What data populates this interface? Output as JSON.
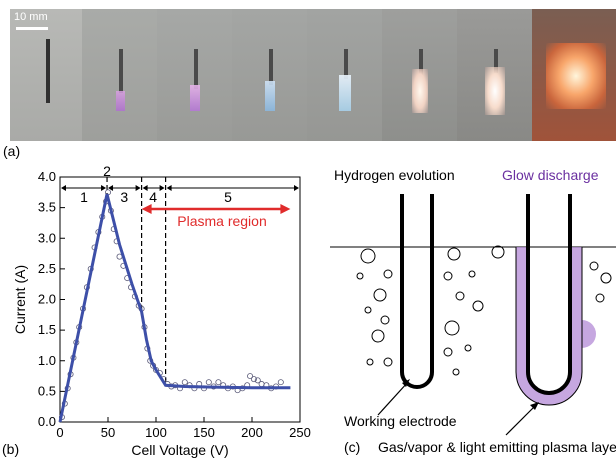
{
  "panel_a": {
    "label": "(a)",
    "scale_bar_text": "10 mm",
    "frame_count": 9
  },
  "panel_b": {
    "label": "(b)",
    "chart_data": {
      "type": "line",
      "xlabel": "Cell Voltage (V)",
      "ylabel": "Current (A)",
      "xlim": [
        0,
        250
      ],
      "ylim": [
        0,
        4.0
      ],
      "x_ticks": [
        0,
        50,
        100,
        150,
        200,
        250
      ],
      "y_ticks": [
        0.0,
        0.5,
        1.0,
        1.5,
        2.0,
        2.5,
        3.0,
        3.5,
        4.0
      ],
      "y_tick_labels": [
        "0.0",
        "0.5",
        "1.0",
        "1.5",
        "2.0",
        "2.5",
        "3.0",
        "3.5",
        "4.0"
      ],
      "grid": false,
      "series": [
        {
          "kind": "fit-line",
          "color": "#3d4fa8",
          "x": [
            0,
            49,
            62,
            75,
            85,
            90,
            95,
            100,
            110,
            130,
            160,
            200,
            240
          ],
          "y": [
            0.0,
            3.72,
            2.9,
            2.25,
            1.8,
            1.35,
            1.0,
            0.85,
            0.6,
            0.58,
            0.57,
            0.56,
            0.56
          ]
        },
        {
          "kind": "measured-points",
          "color": "#5a5a78",
          "x": [
            2,
            5,
            8,
            11,
            14,
            17,
            20,
            24,
            28,
            32,
            36,
            40,
            44,
            48,
            50,
            53,
            56,
            59,
            62,
            66,
            70,
            74,
            78,
            82,
            85,
            88,
            91,
            94,
            97,
            100,
            104,
            108,
            112,
            116,
            120,
            125,
            130,
            135,
            140,
            145,
            150,
            155,
            160,
            165,
            170,
            175,
            180,
            185,
            190,
            195,
            198,
            202,
            206,
            210,
            215,
            220,
            225,
            230
          ],
          "y": [
            0.08,
            0.3,
            0.55,
            0.78,
            1.05,
            1.3,
            1.55,
            1.85,
            2.2,
            2.5,
            2.85,
            3.1,
            3.35,
            3.6,
            3.75,
            3.45,
            3.15,
            2.95,
            2.7,
            2.55,
            2.35,
            2.2,
            2.05,
            1.9,
            1.85,
            1.55,
            1.2,
            1.0,
            0.92,
            0.85,
            0.8,
            0.7,
            0.62,
            0.58,
            0.6,
            0.55,
            0.65,
            0.6,
            0.55,
            0.62,
            0.55,
            0.65,
            0.58,
            0.65,
            0.6,
            0.55,
            0.58,
            0.52,
            0.55,
            0.6,
            0.75,
            0.7,
            0.68,
            0.62,
            0.6,
            0.55,
            0.58,
            0.65
          ]
        }
      ],
      "region_boundaries": [
        49,
        85,
        110
      ],
      "regions": [
        {
          "label": "1",
          "x": 25
        },
        {
          "label": "2",
          "x": 49
        },
        {
          "label": "3",
          "x": 67
        },
        {
          "label": "4",
          "x": 97
        },
        {
          "label": "5",
          "x": 175
        }
      ],
      "plasma_region": {
        "label": "Plasma region",
        "x_start": 85,
        "x_end": 240,
        "color": "#e02b2b"
      }
    }
  },
  "panel_c": {
    "label": "(c)",
    "heading_left": "Hydrogen evolution",
    "heading_right": "Glow discharge",
    "heading_right_color": "#6a2fa0",
    "annotation_left": "Working electrode",
    "annotation_right": "Gas/vapor & light emitting plasma layer"
  }
}
